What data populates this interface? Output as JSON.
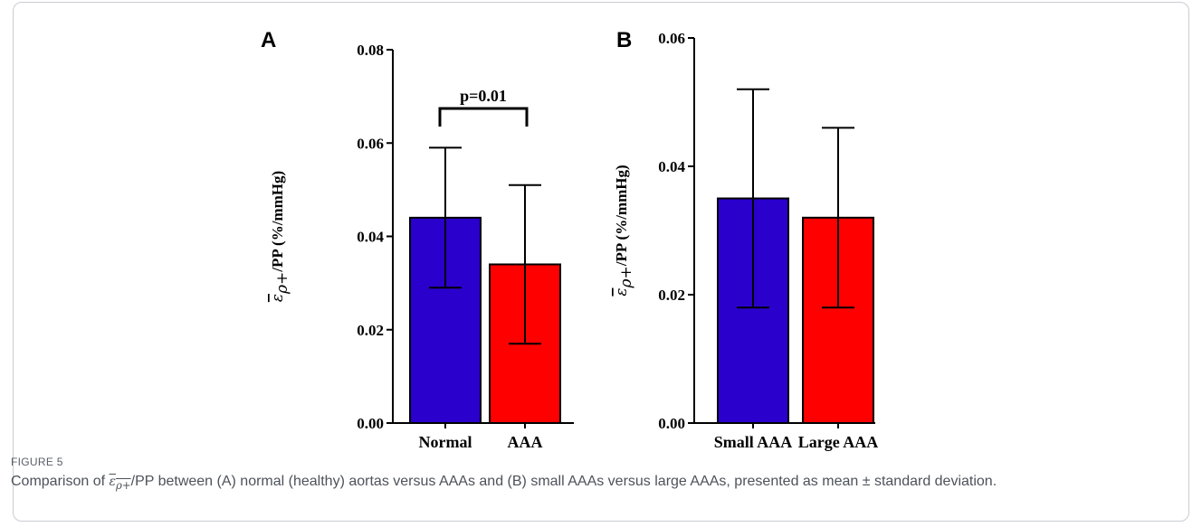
{
  "figure": {
    "label": "FIGURE 5",
    "caption": {
      "before": "Comparison of ",
      "symbol": "ε",
      "symbol_sub": "ρ+",
      "after": "/PP between (A) normal (healthy) aortas versus AAAs and (B) small AAAs versus large AAAs, presented as mean ± standard deviation."
    },
    "ylabel_symbol": "ε",
    "ylabel_symbol_sub": "ρ+",
    "ylabel_text": "/PP (%/mmHg)",
    "colors": {
      "blue": "#2a00cc",
      "red": "#ff0000",
      "axis": "#000000"
    }
  },
  "chart_data": [
    {
      "panel": "A",
      "type": "bar",
      "categories": [
        "Normal",
        "AAA"
      ],
      "values": [
        0.044,
        0.034
      ],
      "error_low": [
        0.029,
        0.017
      ],
      "error_high": [
        0.059,
        0.051
      ],
      "colors": [
        "#2a00cc",
        "#ff0000"
      ],
      "ylim": [
        0,
        0.08
      ],
      "yticks": [
        "0.00",
        "0.02",
        "0.04",
        "0.06",
        "0.08"
      ],
      "annotation": "p=0.01",
      "ylabel": "ε ρ+ /PP (%/mmHg)"
    },
    {
      "panel": "B",
      "type": "bar",
      "categories": [
        "Small AAA",
        "Large AAA"
      ],
      "values": [
        0.035,
        0.032
      ],
      "error_low": [
        0.018,
        0.018
      ],
      "error_high": [
        0.052,
        0.046
      ],
      "colors": [
        "#2a00cc",
        "#ff0000"
      ],
      "ylim": [
        0,
        0.06
      ],
      "yticks": [
        "0.00",
        "0.02",
        "0.04",
        "0.06"
      ],
      "annotation": "",
      "ylabel": "ε ρ+ /PP (%/mmHg)"
    }
  ]
}
